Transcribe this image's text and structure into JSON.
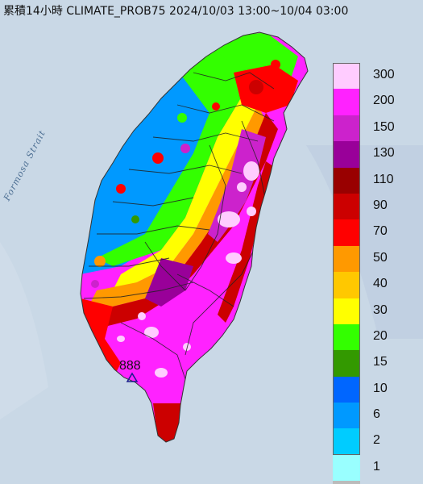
{
  "title": "累積14小時 CLIMATE_PROB75 2024/10/03 13:00~10/04 03:00",
  "strait_label": "Formosa Strait",
  "station_label": "888",
  "legend": [
    {
      "label": "300",
      "color": "#ffccff"
    },
    {
      "label": "200",
      "color": "#ff22ff"
    },
    {
      "label": "150",
      "color": "#cc22cc"
    },
    {
      "label": "130",
      "color": "#990099"
    },
    {
      "label": "110",
      "color": "#990000"
    },
    {
      "label": "90",
      "color": "#cc0000"
    },
    {
      "label": "70",
      "color": "#ff0000"
    },
    {
      "label": "50",
      "color": "#ff9900"
    },
    {
      "label": "40",
      "color": "#ffc800"
    },
    {
      "label": "30",
      "color": "#ffff00"
    },
    {
      "label": "20",
      "color": "#33ff00"
    },
    {
      "label": "15",
      "color": "#339900"
    },
    {
      "label": "10",
      "color": "#0066ff"
    },
    {
      "label": "6",
      "color": "#0099ff"
    },
    {
      "label": "2",
      "color": "#00ccff"
    },
    {
      "label": "1",
      "color": "#99ffff"
    },
    {
      "label": "",
      "color": "#bbbbbb"
    }
  ]
}
